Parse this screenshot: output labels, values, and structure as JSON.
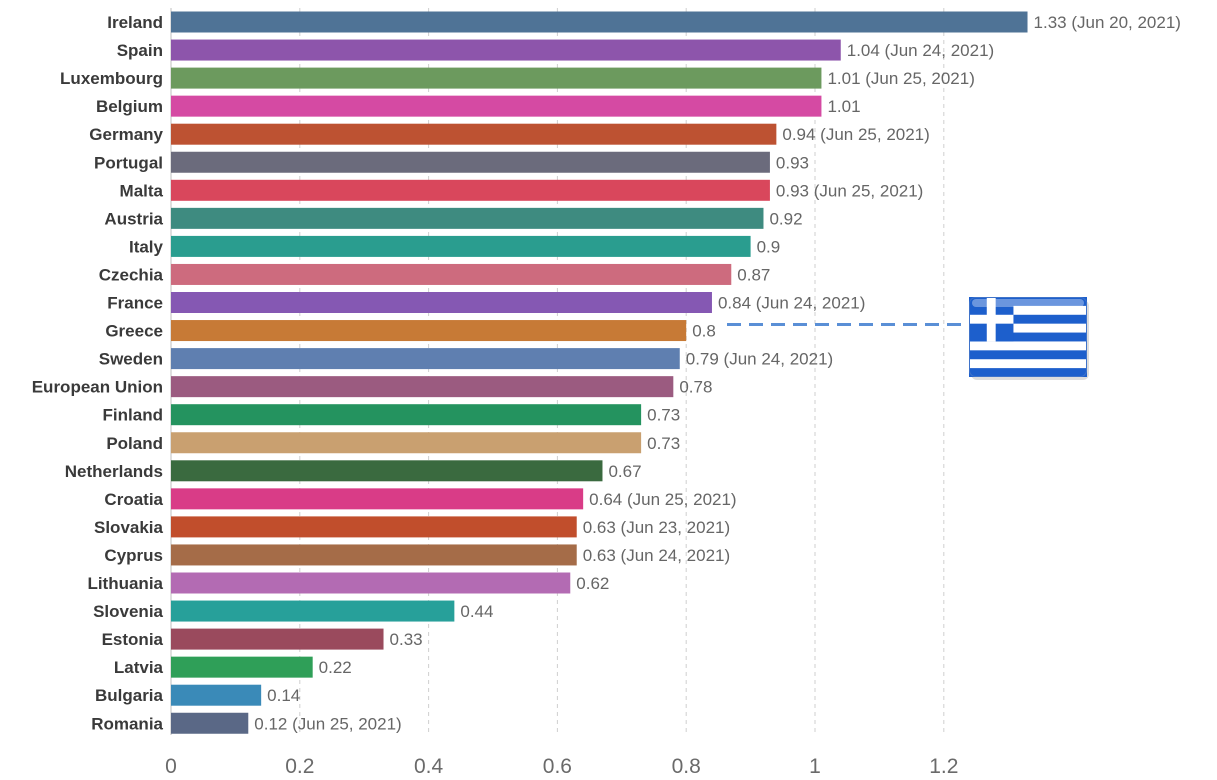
{
  "chart_data": {
    "type": "bar",
    "orientation": "horizontal",
    "categories": [
      "Ireland",
      "Spain",
      "Luxembourg",
      "Belgium",
      "Germany",
      "Portugal",
      "Malta",
      "Austria",
      "Italy",
      "Czechia",
      "France",
      "Greece",
      "Sweden",
      "European Union",
      "Finland",
      "Poland",
      "Netherlands",
      "Croatia",
      "Slovakia",
      "Cyprus",
      "Lithuania",
      "Slovenia",
      "Estonia",
      "Latvia",
      "Bulgaria",
      "Romania"
    ],
    "values": [
      1.33,
      1.04,
      1.01,
      1.01,
      0.94,
      0.93,
      0.93,
      0.92,
      0.9,
      0.87,
      0.84,
      0.8,
      0.79,
      0.78,
      0.73,
      0.73,
      0.67,
      0.64,
      0.63,
      0.63,
      0.62,
      0.44,
      0.33,
      0.22,
      0.14,
      0.12
    ],
    "value_labels": [
      "1.33 (Jun 20, 2021)",
      "1.04 (Jun 24, 2021)",
      "1.01 (Jun 25, 2021)",
      "1.01",
      "0.94 (Jun 25, 2021)",
      "0.93",
      "0.93 (Jun 25, 2021)",
      "0.92",
      "0.9",
      "0.87",
      "0.84 (Jun 24, 2021)",
      "0.8",
      "0.79 (Jun 24, 2021)",
      "0.78",
      "0.73",
      "0.73",
      "0.67",
      "0.64 (Jun 25, 2021)",
      "0.63 (Jun 23, 2021)",
      "0.63 (Jun 24, 2021)",
      "0.62",
      "0.44",
      "0.33",
      "0.22",
      "0.14",
      "0.12 (Jun 25, 2021)"
    ],
    "colors": [
      "#4f7396",
      "#8d55ab",
      "#6c9a5e",
      "#d54aa3",
      "#bd5232",
      "#6b6b7c",
      "#d9475c",
      "#3e8b80",
      "#2a9d8f",
      "#cd6b7e",
      "#8558b3",
      "#c77a36",
      "#5f7fb0",
      "#9b5b80",
      "#24935f",
      "#c9a070",
      "#3a6a3f",
      "#d93c87",
      "#c14e2c",
      "#a56c48",
      "#b36bb3",
      "#27a09a",
      "#9a4a5d",
      "#2f9f58",
      "#3a8ab8",
      "#5a6886"
    ],
    "xlim": [
      0,
      1.4
    ],
    "x_ticks": [
      0,
      0.2,
      0.4,
      0.6,
      0.8,
      1,
      1.2
    ],
    "x_tick_labels": [
      "0",
      "0.2",
      "0.4",
      "0.6",
      "0.8",
      "1",
      "1.2"
    ],
    "grid": true,
    "grid_style": "dashed-vertical",
    "annotation": {
      "category": "Greece",
      "marker": "flag",
      "flag_icon": "greece-flag-icon",
      "connector": "dashed-line",
      "connector_color": "#5a8fd6"
    },
    "title": "",
    "xlabel": "",
    "ylabel": ""
  }
}
